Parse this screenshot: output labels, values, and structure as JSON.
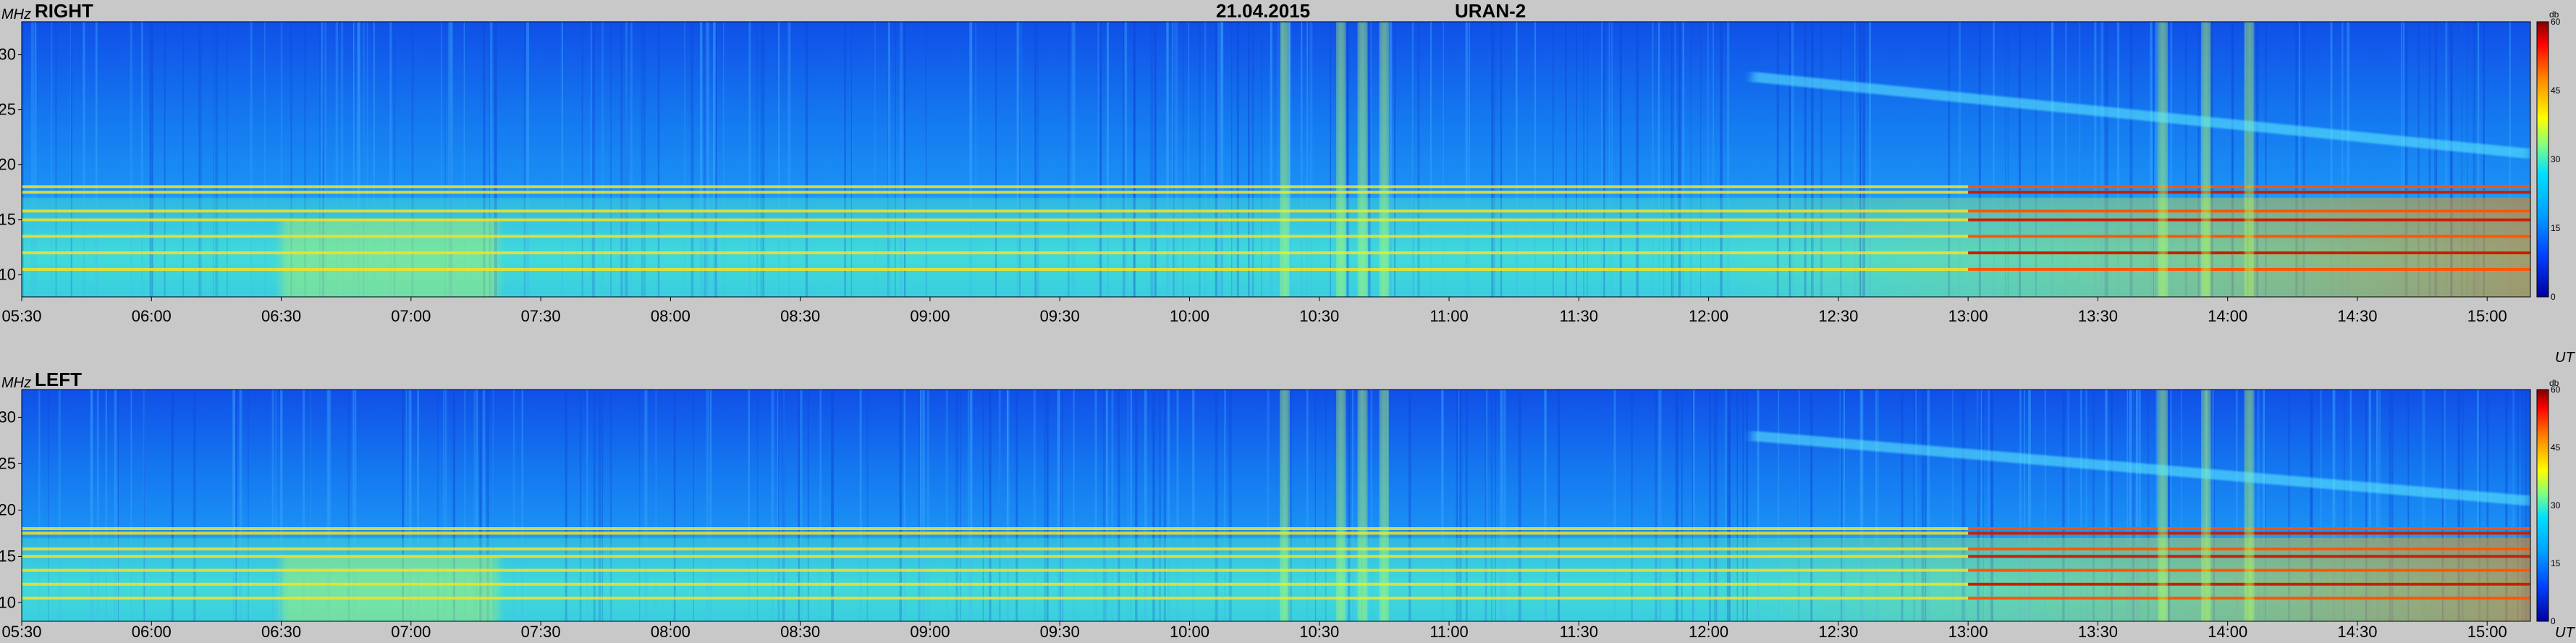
{
  "header": {
    "date": "21.04.2015",
    "instrument": "URAN-2"
  },
  "panels": [
    {
      "label": "RIGHT"
    },
    {
      "label": "LEFT"
    }
  ],
  "axes": {
    "y_unit": "MHz",
    "x_unit": "UT",
    "colorbar_unit": "db"
  },
  "colors": {
    "background": "#c8c8c8",
    "low": "#0000a0",
    "mid": "#00c8ff",
    "high": "#ffff00",
    "max": "#c00000"
  },
  "chart_data": [
    {
      "type": "heatmap",
      "title": "RIGHT",
      "xlabel": "UT",
      "ylabel": "MHz",
      "xlim": [
        "05:30",
        "15:10"
      ],
      "ylim": [
        8,
        33
      ],
      "x_ticks": [
        "05:30",
        "06:00",
        "06:30",
        "07:00",
        "07:30",
        "08:00",
        "08:30",
        "09:00",
        "09:30",
        "10:00",
        "10:30",
        "11:00",
        "11:30",
        "12:00",
        "12:30",
        "13:00",
        "13:30",
        "14:00",
        "14:30",
        "15:00"
      ],
      "y_ticks": [
        10,
        15,
        20,
        25,
        30
      ],
      "colorbar": {
        "label": "db",
        "range": [
          0,
          60
        ],
        "ticks": [
          0,
          15,
          30,
          45,
          60
        ]
      },
      "features": {
        "interference_bands_MHz": [
          10.5,
          12,
          13.5,
          15,
          15.8,
          17.5,
          18
        ],
        "burst_times_UT": [
          "10:22",
          "10:35",
          "10:40",
          "10:45",
          "13:45",
          "13:55",
          "14:05"
        ],
        "drifting_band": {
          "start": [
            "12:10",
            28
          ],
          "end": [
            "15:10",
            21
          ]
        }
      }
    },
    {
      "type": "heatmap",
      "title": "LEFT",
      "xlabel": "UT",
      "ylabel": "MHz",
      "xlim": [
        "05:30",
        "15:10"
      ],
      "ylim": [
        8,
        33
      ],
      "x_ticks": [
        "05:30",
        "06:00",
        "06:30",
        "07:00",
        "07:30",
        "08:00",
        "08:30",
        "09:00",
        "09:30",
        "10:00",
        "10:30",
        "11:00",
        "11:30",
        "12:00",
        "12:30",
        "13:00",
        "13:30",
        "14:00",
        "14:30",
        "15:00"
      ],
      "y_ticks": [
        10,
        15,
        20,
        25,
        30
      ],
      "colorbar": {
        "label": "db",
        "range": [
          0,
          60
        ],
        "ticks": [
          0,
          15,
          30,
          45,
          60
        ]
      },
      "features": {
        "interference_bands_MHz": [
          10.5,
          12,
          13.5,
          15,
          15.8,
          17.5,
          18
        ],
        "burst_times_UT": [
          "10:22",
          "10:35",
          "10:40",
          "10:45",
          "13:45",
          "13:55",
          "14:05"
        ],
        "drifting_band": {
          "start": [
            "12:10",
            28
          ],
          "end": [
            "15:10",
            21
          ]
        }
      }
    }
  ]
}
